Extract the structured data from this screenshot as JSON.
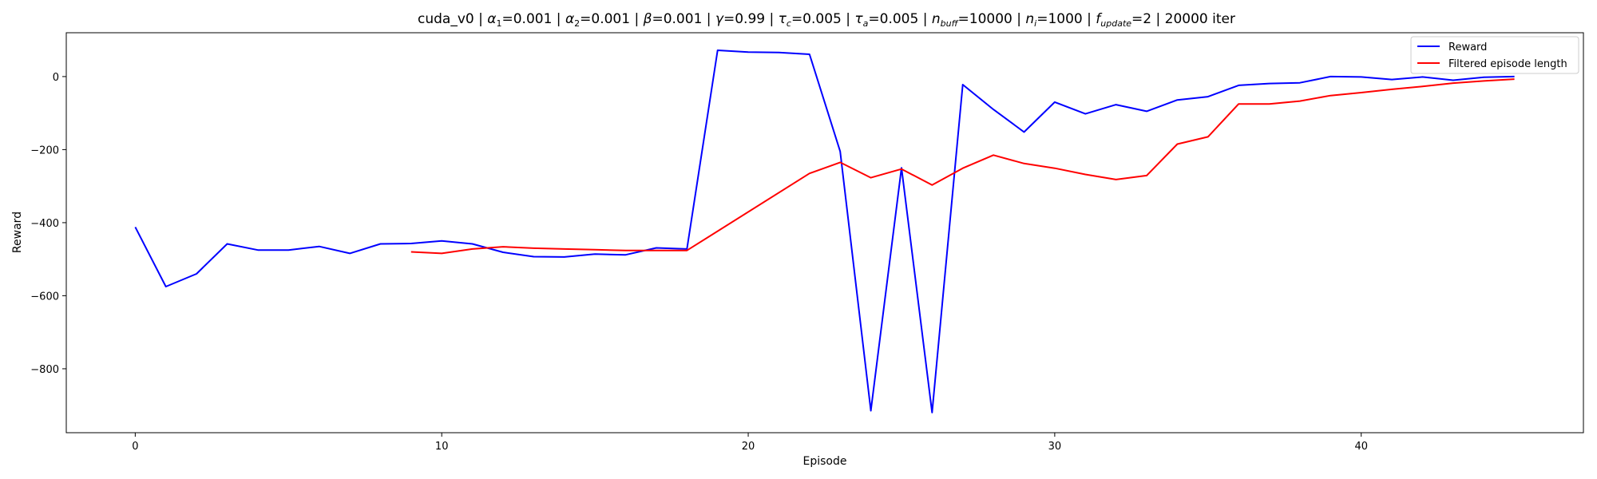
{
  "chart_data": {
    "type": "line",
    "title_parts": [
      {
        "t": "cuda_v0 | "
      },
      {
        "t": "α",
        "i": true
      },
      {
        "t": "1",
        "sub": true
      },
      {
        "t": "=0.001 | "
      },
      {
        "t": "α",
        "i": true
      },
      {
        "t": "2",
        "sub": true
      },
      {
        "t": "=0.001 | "
      },
      {
        "t": "β",
        "i": true
      },
      {
        "t": "=0.001 | "
      },
      {
        "t": "γ",
        "i": true
      },
      {
        "t": "=0.99 | "
      },
      {
        "t": "τ",
        "i": true
      },
      {
        "t": "c",
        "sub": true,
        "i": true
      },
      {
        "t": "=0.005 | "
      },
      {
        "t": "τ",
        "i": true
      },
      {
        "t": "a",
        "sub": true,
        "i": true
      },
      {
        "t": "=0.005 | "
      },
      {
        "t": "n",
        "i": true
      },
      {
        "t": "buff",
        "sub": true,
        "i": true
      },
      {
        "t": "=10000 | "
      },
      {
        "t": "n",
        "i": true
      },
      {
        "t": "i",
        "sub": true,
        "i": true
      },
      {
        "t": "=1000 | "
      },
      {
        "t": "f",
        "i": true
      },
      {
        "t": "update",
        "sub": true,
        "i": true
      },
      {
        "t": "=2 | 20000 iter"
      }
    ],
    "xlabel": "Episode",
    "ylabel": "Reward",
    "xlim": [
      -2.25,
      47.25
    ],
    "ylim": [
      -975,
      120
    ],
    "xticks": [
      0,
      10,
      20,
      30,
      40
    ],
    "yticks": [
      0,
      -200,
      -400,
      -600,
      -800
    ],
    "xtick_labels": [
      "0",
      "10",
      "20",
      "30",
      "40"
    ],
    "ytick_labels": [
      "0",
      "−200",
      "−400",
      "−600",
      "−800"
    ],
    "grid": false,
    "legend_placement": "top-right",
    "series": [
      {
        "name": "Reward",
        "color": "#0000ff",
        "x": [
          0,
          1,
          2,
          3,
          4,
          5,
          6,
          7,
          8,
          9,
          10,
          11,
          12,
          13,
          14,
          15,
          16,
          17,
          18,
          19,
          20,
          21,
          22,
          23,
          24,
          25,
          26,
          27,
          28,
          29,
          30,
          31,
          32,
          33,
          34,
          35,
          36,
          37,
          38,
          39,
          40,
          41,
          42,
          43,
          44,
          45
        ],
        "y": [
          -412,
          -575,
          -540,
          -458,
          -475,
          -475,
          -465,
          -484,
          -458,
          -457,
          -450,
          -458,
          -481,
          -493,
          -494,
          -486,
          -488,
          -469,
          -472,
          72,
          67,
          66,
          61,
          -205,
          -915,
          -250,
          -920,
          -22,
          -90,
          -152,
          -70,
          -102,
          -77,
          -95,
          -64,
          -55,
          -24,
          -19,
          -17,
          0,
          -1,
          -8,
          -1,
          -10,
          -2,
          0
        ]
      },
      {
        "name": "Filtered episode length",
        "color": "#ff0000",
        "x": [
          9,
          10,
          11,
          12,
          13,
          14,
          15,
          16,
          17,
          18,
          22,
          23,
          24,
          25,
          26,
          27,
          28,
          29,
          30,
          31,
          32,
          33,
          34,
          35,
          36,
          37,
          38,
          39,
          40,
          41,
          42,
          43,
          44,
          45
        ],
        "y": [
          -480,
          -484,
          -472,
          -466,
          -470,
          -472,
          -474,
          -476,
          -476,
          -476,
          -265,
          -235,
          -277,
          -253,
          -297,
          -251,
          -215,
          -238,
          -251,
          -268,
          -282,
          -271,
          -185,
          -165,
          -75,
          -75,
          -67,
          -52,
          -44,
          -35,
          -27,
          -18,
          -12,
          -7
        ]
      }
    ]
  }
}
